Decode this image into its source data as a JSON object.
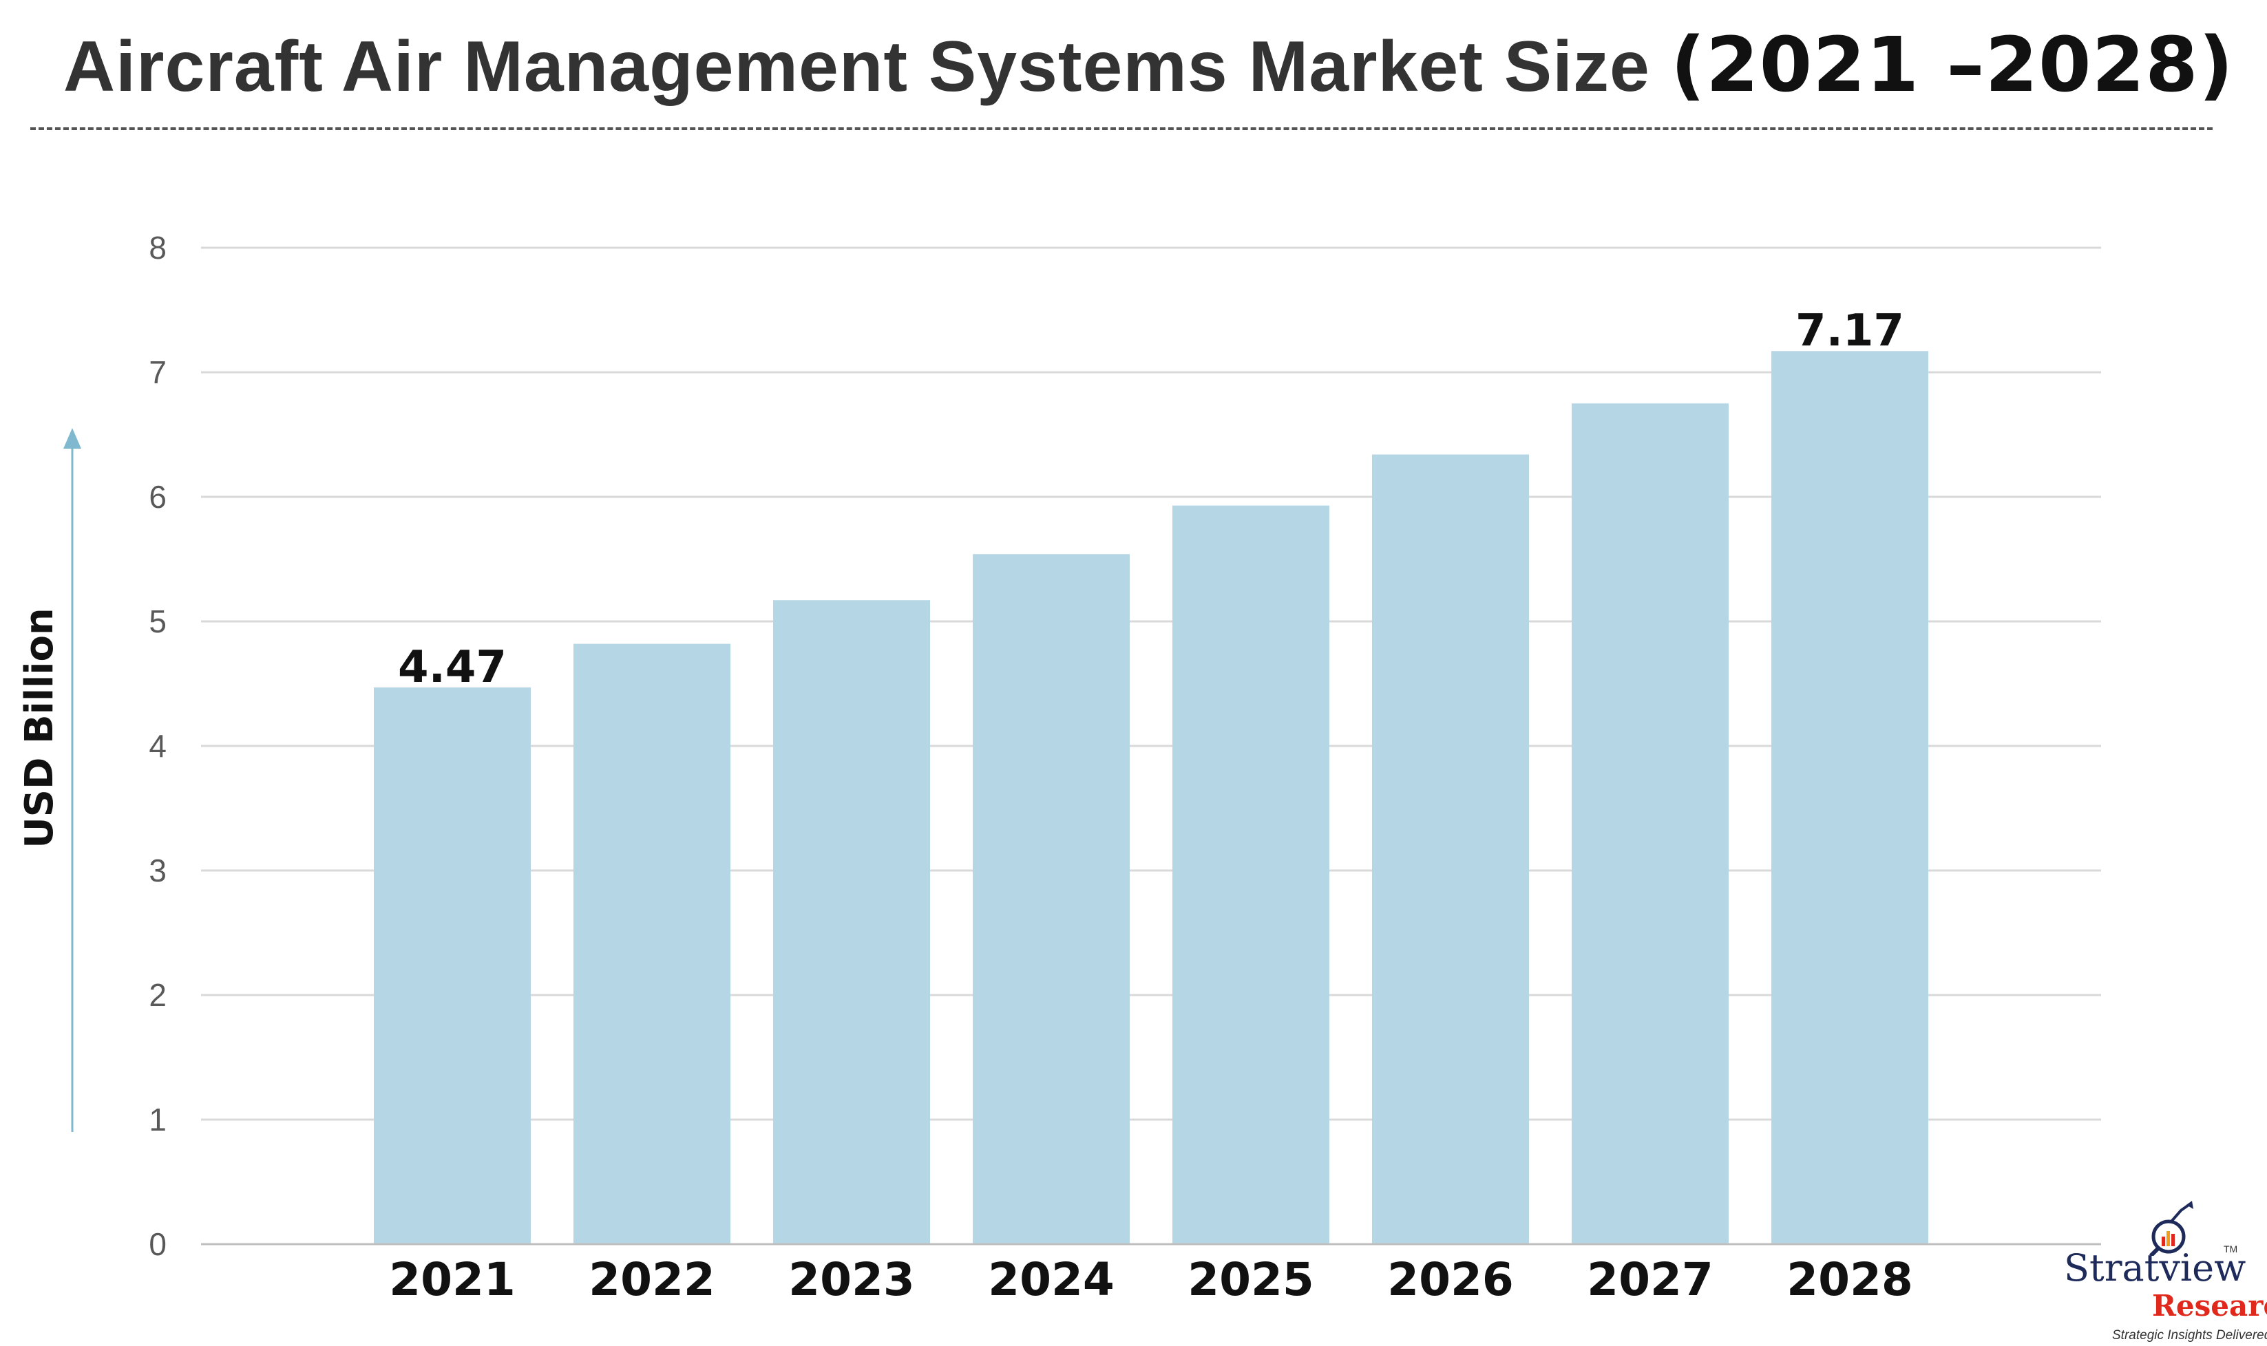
{
  "title": {
    "main": "Aircraft Air Management Systems Market Size",
    "years": "(2021 –2028)"
  },
  "chart_data": {
    "type": "bar",
    "categories": [
      "2021",
      "2022",
      "2023",
      "2024",
      "2025",
      "2026",
      "2027",
      "2028"
    ],
    "values": [
      4.47,
      4.82,
      5.17,
      5.54,
      5.93,
      6.34,
      6.75,
      7.17
    ],
    "data_labels": [
      {
        "index": 0,
        "text": "4.47"
      },
      {
        "index": 7,
        "text": "7.17"
      }
    ],
    "ylabel": "USD Billion",
    "ylim": [
      0,
      8
    ],
    "yticks": [
      "0",
      "1",
      "2",
      "3",
      "4",
      "5",
      "6",
      "7",
      "8"
    ],
    "grid": true,
    "bar_color": "#b5d7e5",
    "grid_color": "#d9d9d9",
    "arrow_color": "#7fb8cf"
  },
  "logo": {
    "name": "Stratview",
    "sub": "Research",
    "tagline": "Strategic Insights Delivered",
    "tm": "TM"
  }
}
